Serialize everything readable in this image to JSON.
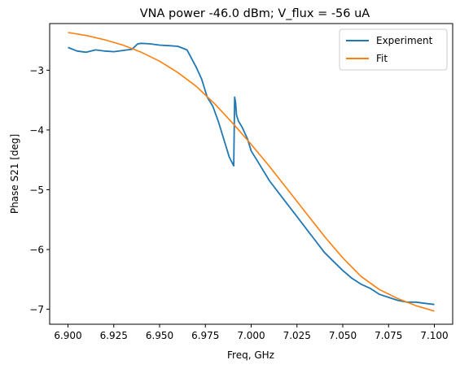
{
  "chart_data": {
    "type": "line",
    "title": "VNA power -46.0 dBm; V_flux = -56 uA",
    "xlabel": "Freq, GHz",
    "ylabel": "Phase S21 [deg]",
    "xlim": [
      6.89,
      7.11
    ],
    "ylim": [
      -7.25,
      -2.22
    ],
    "x_ticks": [
      6.9,
      6.925,
      6.95,
      6.975,
      7.0,
      7.025,
      7.05,
      7.075,
      7.1
    ],
    "x_tick_labels": [
      "6.900",
      "6.925",
      "6.950",
      "6.975",
      "7.000",
      "7.025",
      "7.050",
      "7.075",
      "7.100"
    ],
    "y_ticks": [
      -3,
      -4,
      -5,
      -6,
      -7
    ],
    "y_tick_labels": [
      "−3",
      "−4",
      "−5",
      "−6",
      "−7"
    ],
    "grid": false,
    "legend_position": "upper right",
    "series": [
      {
        "name": "Experiment",
        "color": "#1f77b4",
        "x": [
          6.9,
          6.905,
          6.91,
          6.915,
          6.92,
          6.925,
          6.93,
          6.935,
          6.938,
          6.94,
          6.945,
          6.95,
          6.955,
          6.96,
          6.965,
          6.97,
          6.973,
          6.976,
          6.979,
          6.982,
          6.985,
          6.988,
          6.9905,
          6.991,
          6.9915,
          6.992,
          6.993,
          6.995,
          6.998,
          7.0,
          7.003,
          7.006,
          7.01,
          7.015,
          7.02,
          7.025,
          7.03,
          7.035,
          7.04,
          7.045,
          7.05,
          7.055,
          7.06,
          7.065,
          7.07,
          7.075,
          7.08,
          7.085,
          7.09,
          7.095,
          7.1
        ],
        "y": [
          -2.62,
          -2.68,
          -2.7,
          -2.66,
          -2.68,
          -2.69,
          -2.67,
          -2.65,
          -2.56,
          -2.55,
          -2.56,
          -2.58,
          -2.59,
          -2.6,
          -2.66,
          -2.95,
          -3.15,
          -3.45,
          -3.6,
          -3.85,
          -4.15,
          -4.45,
          -4.6,
          -3.45,
          -3.55,
          -3.75,
          -3.85,
          -3.95,
          -4.15,
          -4.35,
          -4.5,
          -4.65,
          -4.85,
          -5.05,
          -5.25,
          -5.45,
          -5.65,
          -5.85,
          -6.05,
          -6.2,
          -6.35,
          -6.48,
          -6.58,
          -6.65,
          -6.75,
          -6.8,
          -6.85,
          -6.88,
          -6.88,
          -6.9,
          -6.92
        ]
      },
      {
        "name": "Fit",
        "color": "#ff7f0e",
        "x": [
          6.9,
          6.91,
          6.92,
          6.93,
          6.94,
          6.95,
          6.96,
          6.97,
          6.98,
          6.99,
          7.0,
          7.01,
          7.02,
          7.03,
          7.04,
          7.05,
          7.06,
          7.07,
          7.08,
          7.09,
          7.1
        ],
        "y": [
          -2.37,
          -2.42,
          -2.49,
          -2.58,
          -2.7,
          -2.85,
          -3.04,
          -3.27,
          -3.56,
          -3.89,
          -4.24,
          -4.61,
          -5.0,
          -5.39,
          -5.78,
          -6.14,
          -6.45,
          -6.67,
          -6.82,
          -6.94,
          -7.03
        ]
      }
    ]
  }
}
